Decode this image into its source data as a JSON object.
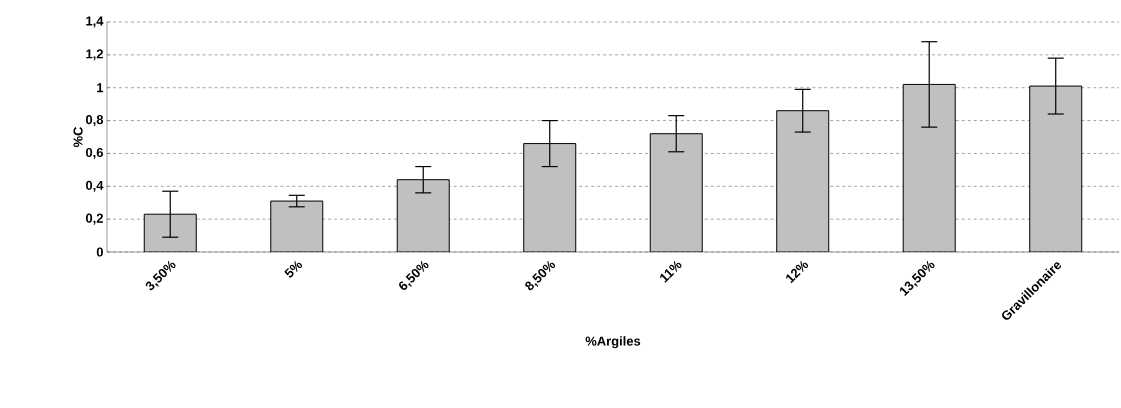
{
  "chart_data": {
    "type": "bar",
    "xlabel": "%Argiles",
    "ylabel": "%C",
    "categories": [
      "3,50%",
      "5%",
      "6,50%",
      "8,50%",
      "11%",
      "12%",
      "13,50%",
      "Gravillonaire"
    ],
    "values": [
      0.23,
      0.31,
      0.44,
      0.66,
      0.72,
      0.86,
      1.02,
      1.01
    ],
    "errors": [
      0.14,
      0.035,
      0.08,
      0.14,
      0.11,
      0.13,
      0.26,
      0.17
    ],
    "color": "#c0c0c0",
    "ylim": [
      0,
      1.4
    ],
    "yticks": [
      0,
      {
        "value": 0.2,
        "label": "0,2"
      },
      {
        "value": 0.4,
        "label": "0,4"
      },
      {
        "value": 0.6,
        "label": "0,6"
      },
      {
        "value": 0.8,
        "label": "0,8"
      },
      1,
      {
        "value": 1.2,
        "label": "1,2"
      },
      {
        "value": 1.4,
        "label": "1,4"
      }
    ],
    "grid": "y"
  }
}
